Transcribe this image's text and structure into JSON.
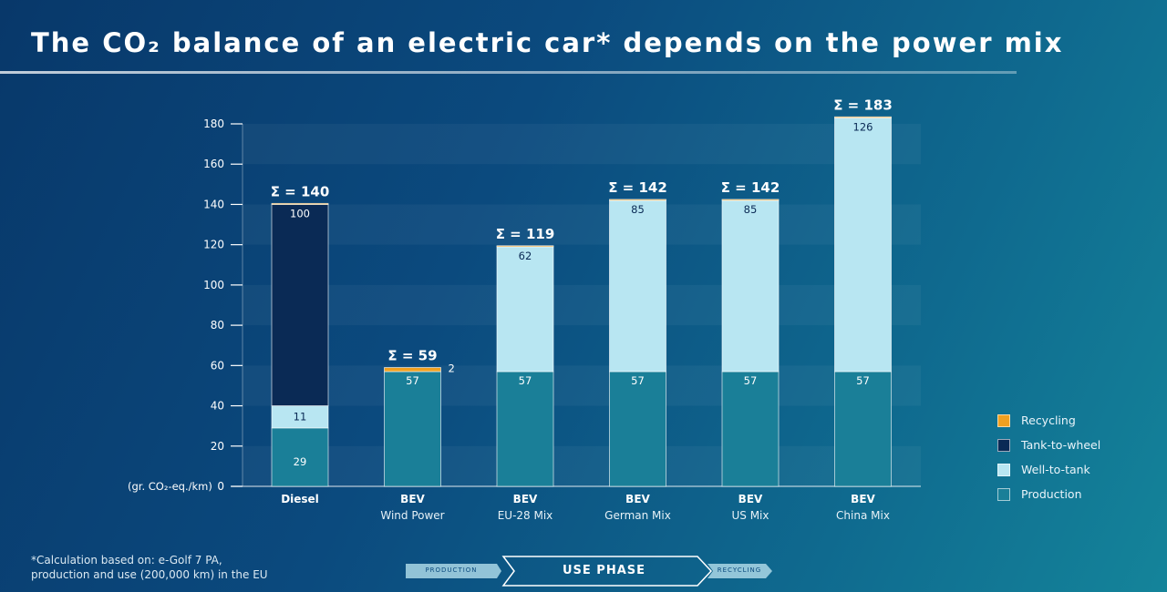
{
  "title_text": "The CO₂ balance of an electric car* depends on the power mix",
  "footnote": [
    "*Calculation based on: e-Golf 7 PA,",
    "production and use (200,000 km) in the EU"
  ],
  "phases": {
    "production": "PRODUCTION",
    "use": "USE PHASE",
    "recycling": "RECYCLING"
  },
  "colors": {
    "recycling": "#f0a020",
    "tank_to_wheel": "#0a2a55",
    "well_to_tank": "#b8e6f2",
    "production": "#1a7f98"
  },
  "chart_data": {
    "type": "bar",
    "stacked": true,
    "unit_label": "(gr. CO₂-eq./km)",
    "ylim": [
      0,
      180
    ],
    "yticks": [
      0,
      20,
      40,
      60,
      80,
      100,
      120,
      140,
      160,
      180
    ],
    "grid": "alternating horizontal bands",
    "legend_position": "right",
    "categories": [
      {
        "line1": "Diesel",
        "line2": ""
      },
      {
        "line1": "BEV",
        "line2": "Wind Power"
      },
      {
        "line1": "BEV",
        "line2": "EU-28 Mix"
      },
      {
        "line1": "BEV",
        "line2": "German Mix"
      },
      {
        "line1": "BEV",
        "line2": "US Mix"
      },
      {
        "line1": "BEV",
        "line2": "China Mix"
      }
    ],
    "series": [
      {
        "name": "Production",
        "values": [
          29,
          57,
          57,
          57,
          57,
          57
        ],
        "labels": [
          "29",
          "57",
          "57",
          "57",
          "57",
          "57"
        ]
      },
      {
        "name": "Well-to-tank",
        "values": [
          11,
          0,
          62,
          85,
          85,
          126
        ],
        "labels": [
          "11",
          "",
          "62",
          "85",
          "85",
          "126"
        ]
      },
      {
        "name": "Tank-to-wheel",
        "values": [
          100,
          0,
          0,
          0,
          0,
          0
        ],
        "labels": [
          "100",
          "",
          "",
          "",
          "",
          ""
        ]
      },
      {
        "name": "Recycling",
        "values": [
          0.5,
          2,
          0.5,
          0.5,
          0.5,
          0.5
        ],
        "labels": [
          "",
          "2",
          "",
          "",
          "",
          ""
        ]
      }
    ],
    "totals": [
      "Σ = 140",
      "Σ = 59",
      "Σ = 119",
      "Σ = 142",
      "Σ = 142",
      "Σ = 183"
    ],
    "legend": [
      "Recycling",
      "Tank-to-wheel",
      "Well-to-tank",
      "Production"
    ]
  }
}
